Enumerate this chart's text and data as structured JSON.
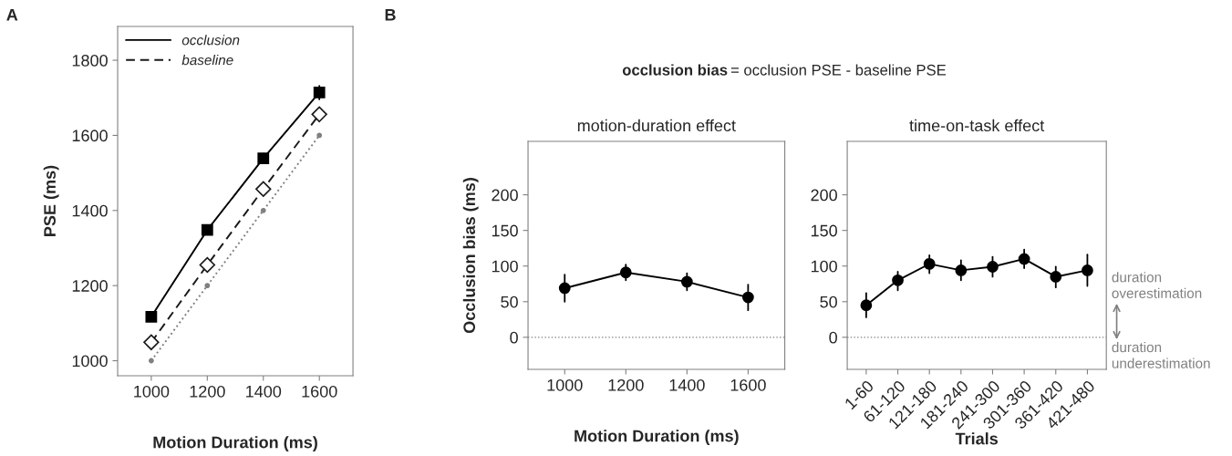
{
  "chart_data": [
    {
      "type": "line",
      "x": [
        1000,
        1200,
        1400,
        1600
      ],
      "xlim": [
        880,
        1720
      ],
      "xticks": [
        1000,
        1200,
        1400,
        1600
      ],
      "ylim": [
        960,
        1890
      ],
      "yticks": [
        1000,
        1200,
        1400,
        1600,
        1800
      ],
      "xlabel": "Motion Duration (ms)",
      "ylabel": "PSE (ms)",
      "legend": "top left",
      "grid": false,
      "annotations": [
        "A"
      ],
      "series": [
        {
          "name": "occlusion",
          "color": "#000000",
          "values": [
            1117,
            1348,
            1539,
            1714
          ],
          "errors": [
            10,
            8,
            12,
            18
          ],
          "marker": "square",
          "line_style": "solid"
        },
        {
          "name": "baseline",
          "color": "#1a1a1a",
          "values": [
            1049,
            1255,
            1457,
            1656
          ],
          "errors": [
            10,
            10,
            10,
            10
          ],
          "marker": "diamond",
          "line_style": "dashed"
        },
        {
          "color": "#808080",
          "values": [
            1000,
            1200,
            1400,
            1600
          ],
          "marker": "circle",
          "line_style": "dotted"
        }
      ]
    },
    {
      "type": "line",
      "x": [
        1000,
        1200,
        1400,
        1600
      ],
      "xlim": [
        880,
        1720
      ],
      "xticks": [
        1000,
        1200,
        1400,
        1600
      ],
      "ylim": [
        -45,
        275
      ],
      "yticks": [
        0,
        50,
        100,
        150,
        200
      ],
      "title": "motion-duration effect",
      "xlabel": "Motion Duration (ms)",
      "ylabel": "Occlusion bias (ms)",
      "grid": false,
      "annotations": [
        "B",
        "occlusion bias",
        "= occlusion PSE - baseline PSE"
      ],
      "ref_lines": [
        {
          "axis": "y",
          "value": 0,
          "color": "#808080",
          "line_style": "dotted"
        }
      ],
      "series": [
        {
          "color": "#000000",
          "values": [
            69,
            91,
            78,
            56
          ],
          "errors": [
            [
              50,
              88
            ],
            [
              80,
              102
            ],
            [
              66,
              90
            ],
            [
              38,
              74
            ]
          ],
          "marker": "circle",
          "line_style": "solid"
        }
      ]
    },
    {
      "type": "line",
      "categories": [
        "1-60",
        "61-120",
        "121-180",
        "181-240",
        "241-300",
        "301-360",
        "361-420",
        "421-480"
      ],
      "ylim": [
        -45,
        275
      ],
      "yticks": [
        0,
        50,
        100,
        150,
        200
      ],
      "title": "time-on-task effect",
      "xlabel": "Trials",
      "grid": false,
      "annotations": [
        "duration\noverestimation",
        "duration\nunderestimation"
      ],
      "ref_lines": [
        {
          "axis": "y",
          "value": 0,
          "color": "#808080",
          "line_style": "dotted"
        }
      ],
      "series": [
        {
          "color": "#000000",
          "values": [
            45,
            80,
            103,
            94,
            99,
            110,
            85,
            94
          ],
          "errors": [
            [
              28,
              62
            ],
            [
              66,
              92
            ],
            [
              90,
              115
            ],
            [
              80,
              108
            ],
            [
              85,
              113
            ],
            [
              97,
              123
            ],
            [
              70,
              99
            ],
            [
              72,
              116
            ]
          ],
          "marker": "circle",
          "line_style": "solid"
        }
      ]
    }
  ]
}
